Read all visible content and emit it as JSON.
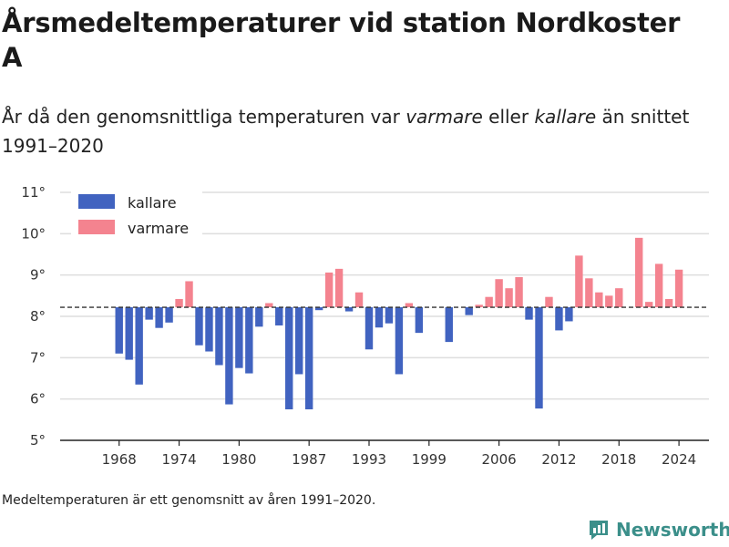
{
  "header": {
    "title": "Årsmedeltemperaturer vid station Nordkoster A",
    "subtitle_parts": {
      "a": "År då den genomsnittliga temperaturen var ",
      "b": "varmare",
      "c": " eller ",
      "d": "kallare",
      "e": " än snittet 1991–2020"
    }
  },
  "footer": {
    "note": "Medeltemperaturen är ett genomsnitt av åren 1991–2020.",
    "brand": "Newsworthy"
  },
  "colors": {
    "kallare": "#4163c0",
    "varmare": "#f4838f",
    "brand": "#3b8f8a"
  },
  "chart_data": {
    "type": "bar",
    "baseline": 8.22,
    "ylim": [
      5,
      11
    ],
    "yticks": [
      "5°",
      "6°",
      "7°",
      "8°",
      "9°",
      "10°",
      "11°"
    ],
    "xticks": [
      "1968",
      "1974",
      "1980",
      "1987",
      "1993",
      "1999",
      "2006",
      "2012",
      "2018",
      "2024"
    ],
    "legend": [
      "kallare",
      "varmare"
    ],
    "legend_position": "top-left",
    "grid": true,
    "x": [
      1968,
      1969,
      1970,
      1971,
      1972,
      1973,
      1974,
      1975,
      1976,
      1977,
      1978,
      1979,
      1980,
      1981,
      1982,
      1983,
      1984,
      1985,
      1986,
      1987,
      1988,
      1989,
      1990,
      1991,
      1992,
      1993,
      1994,
      1995,
      1996,
      1997,
      1998,
      2001,
      2003,
      2004,
      2005,
      2006,
      2007,
      2008,
      2009,
      2010,
      2011,
      2012,
      2013,
      2014,
      2015,
      2016,
      2017,
      2018,
      2020,
      2021,
      2022,
      2023,
      2024
    ],
    "values": [
      7.1,
      6.95,
      6.35,
      7.92,
      7.72,
      7.85,
      8.42,
      8.85,
      7.3,
      7.15,
      6.82,
      5.87,
      6.75,
      6.62,
      7.75,
      8.32,
      7.78,
      5.75,
      6.6,
      5.75,
      8.15,
      9.06,
      9.15,
      8.12,
      8.58,
      7.2,
      7.73,
      7.83,
      6.6,
      8.32,
      7.6,
      7.38,
      8.03,
      8.28,
      8.47,
      8.9,
      8.68,
      8.95,
      7.92,
      5.77,
      8.47,
      7.66,
      7.88,
      9.47,
      8.92,
      8.58,
      8.5,
      8.68,
      9.9,
      8.35,
      9.27,
      8.42,
      9.13
    ]
  }
}
